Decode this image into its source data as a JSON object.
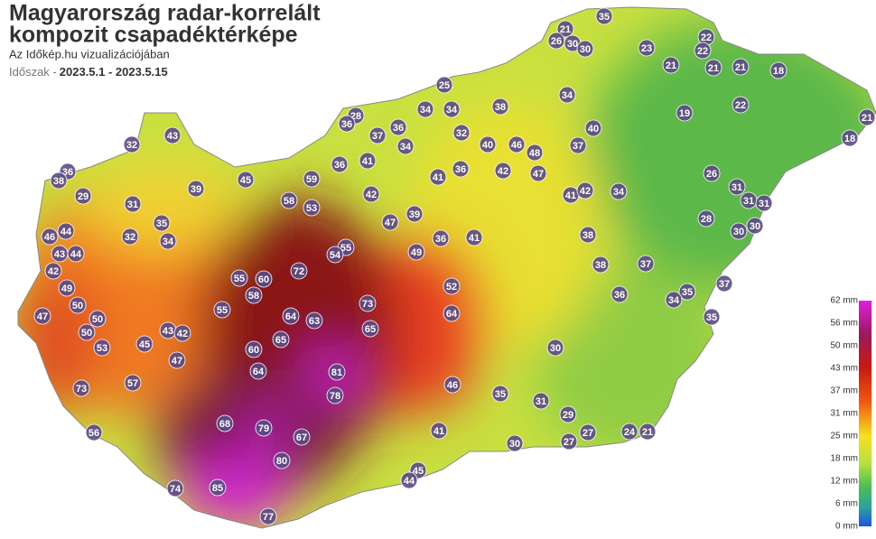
{
  "header": {
    "title_line1": "Magyarország radar-korrelált",
    "title_line2": "kompozit csapadéktérképe",
    "subtitle": "Az Időkép.hu vizualizációjában",
    "period_label": "Időszak -",
    "period": "2023.5.1 - 2023.5.15"
  },
  "legend": {
    "labels": [
      "62 mm",
      "56 mm",
      "50 mm",
      "43 mm",
      "37 mm",
      "31 mm",
      "25 mm",
      "18 mm",
      "12 mm",
      "6 mm",
      "0 mm"
    ]
  },
  "stations": [
    35,
    21,
    26,
    30,
    30,
    23,
    22,
    22,
    21,
    21,
    21,
    18,
    21,
    18,
    22,
    19,
    25,
    34,
    38,
    34,
    34,
    28,
    36,
    37,
    36,
    32,
    43,
    32,
    40,
    46,
    40,
    37,
    48,
    34,
    41,
    36,
    36,
    42,
    47,
    41,
    26,
    36,
    38,
    29,
    45,
    39,
    59,
    58,
    53,
    31,
    42,
    41,
    42,
    34,
    31,
    31,
    31,
    35,
    47,
    39,
    28,
    30,
    30,
    46,
    44,
    44,
    43,
    32,
    34,
    55,
    54,
    49,
    36,
    41,
    38,
    72,
    42,
    55,
    60,
    38,
    37,
    58,
    49,
    52,
    35,
    37,
    34,
    36,
    73,
    64,
    64,
    63,
    50,
    55,
    47,
    50,
    35,
    65,
    65,
    50,
    43,
    42,
    45,
    53,
    60,
    47,
    30,
    81,
    64,
    57,
    73,
    46,
    78,
    35,
    31,
    68,
    79,
    67,
    41,
    29,
    24,
    21,
    56,
    27,
    30,
    27,
    80,
    45,
    44,
    74,
    85,
    77
  ]
}
